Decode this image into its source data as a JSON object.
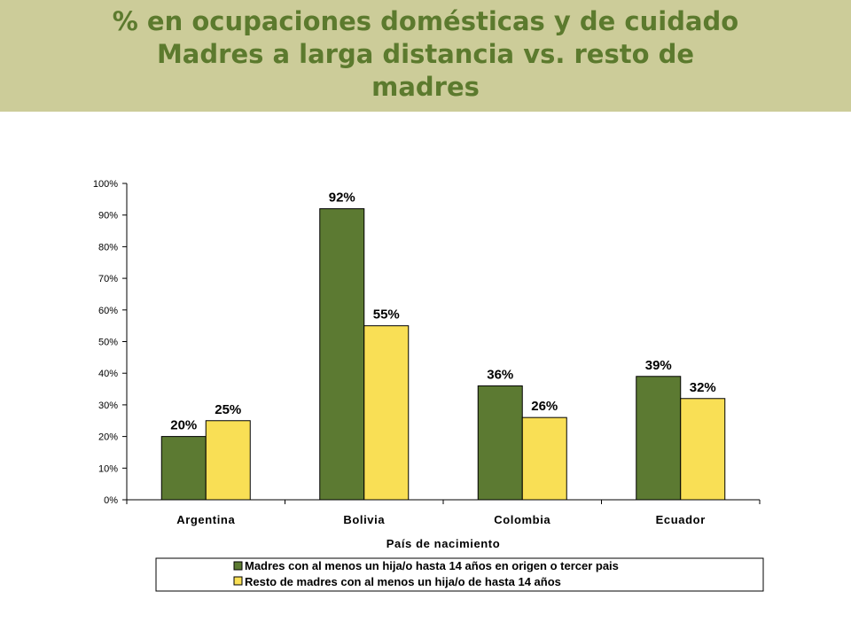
{
  "title": {
    "lines": [
      "% en ocupaciones domésticas y de cuidado",
      "Madres a larga distancia vs. resto de",
      "madres"
    ]
  },
  "colors": {
    "title_band": "#cccc99",
    "title_text": "#5c7a2e",
    "series_1": "#5c7a32",
    "series_2": "#f9df55"
  },
  "chart_data": {
    "type": "bar",
    "categories": [
      "Argentina",
      "Bolivia",
      "Colombia",
      "Ecuador"
    ],
    "series": [
      {
        "name": "Madres con al menos un hija/o hasta 14 años en origen o tercer pais",
        "values": [
          20,
          92,
          36,
          39
        ],
        "labels": [
          "20%",
          "92%",
          "36%",
          "39%"
        ]
      },
      {
        "name": "Resto de madres con al menos un hija/o de hasta 14 años",
        "values": [
          25,
          55,
          26,
          32
        ],
        "labels": [
          "25%",
          "55%",
          "26%",
          "32%"
        ]
      }
    ],
    "xlabel": "País de nacimiento",
    "ylabel": "",
    "ylim": [
      0,
      100
    ],
    "yticks": [
      "0%",
      "10%",
      "20%",
      "30%",
      "40%",
      "50%",
      "60%",
      "70%",
      "80%",
      "90%",
      "100%"
    ],
    "grid": false,
    "legend": "bottom"
  }
}
